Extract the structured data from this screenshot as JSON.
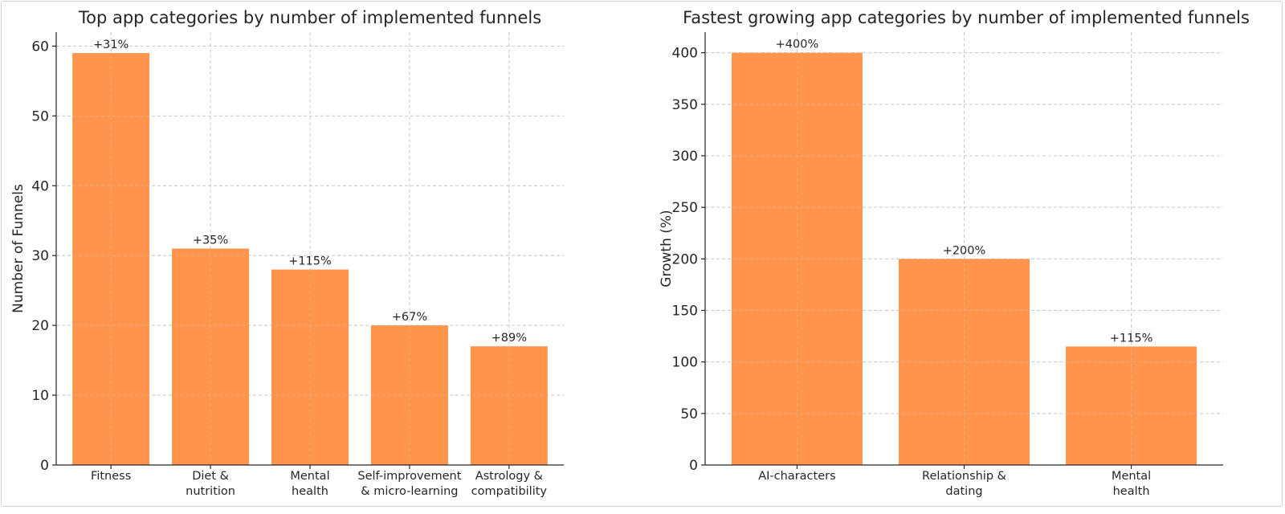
{
  "chart_data": [
    {
      "type": "bar",
      "title": "Top app categories by number of implemented funnels",
      "xlabel": "",
      "ylabel": "Number of Funnels",
      "categories": [
        [
          "Fitness"
        ],
        [
          "Diet &",
          "nutrition"
        ],
        [
          "Mental",
          "health"
        ],
        [
          "Self-improvement",
          "& micro-learning"
        ],
        [
          "Astrology &",
          "compatibility"
        ]
      ],
      "values": [
        59,
        31,
        28,
        20,
        17
      ],
      "data_labels": [
        "+31%",
        "+35%",
        "+115%",
        "+67%",
        "+89%"
      ],
      "ylim": [
        0,
        62
      ],
      "yticks": [
        0,
        10,
        20,
        30,
        40,
        50,
        60
      ],
      "grid": true,
      "bar_color": "#ff944d"
    },
    {
      "type": "bar",
      "title": "Fastest growing app categories by number of implemented funnels",
      "xlabel": "",
      "ylabel": "Growth (%)",
      "categories": [
        [
          "AI-characters"
        ],
        [
          "Relationship &",
          "dating"
        ],
        [
          "Mental",
          "health"
        ]
      ],
      "values": [
        400,
        200,
        115
      ],
      "data_labels": [
        "+400%",
        "+200%",
        "+115%"
      ],
      "ylim": [
        0,
        420
      ],
      "yticks": [
        0,
        50,
        100,
        150,
        200,
        250,
        300,
        350,
        400
      ],
      "grid": true,
      "bar_color": "#ff944d"
    }
  ]
}
